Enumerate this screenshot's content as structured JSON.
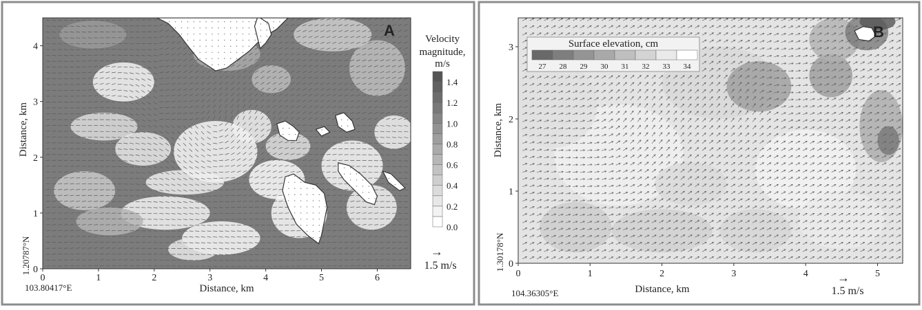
{
  "chart_data": [
    {
      "type": "heatmap",
      "panel_label": "A",
      "xlabel": "Distance, km",
      "ylabel": "Distance, km",
      "xlim": [
        0,
        6.6
      ],
      "ylim": [
        0,
        4.5
      ],
      "x_ticks": [
        0,
        1,
        2,
        3,
        4,
        5,
        6
      ],
      "y_ticks": [
        0,
        1,
        2,
        3,
        4
      ],
      "origin_lat": "1.20787°N",
      "origin_lon": "103.80417°E",
      "colorbar": {
        "title_lines": [
          "Velocity",
          "magnitude,",
          "m/s"
        ],
        "ticks": [
          "1.4",
          "1.2",
          "1.0",
          "0.8",
          "0.6",
          "0.4",
          "0.2",
          "0.0"
        ],
        "range": [
          0.0,
          1.5
        ]
      },
      "reference_vector": {
        "arrow": "→",
        "label": "1.5 m/s"
      },
      "field": "velocity magnitude with current vectors; islands shown as land (no data)",
      "colors": {
        "low": "#ffffff",
        "high": "#555555",
        "arrow": "#555555"
      }
    },
    {
      "type": "heatmap",
      "panel_label": "B",
      "xlabel": "Distance, km",
      "ylabel": "Distance, km",
      "xlim": [
        0,
        5.35
      ],
      "ylim": [
        0,
        3.4
      ],
      "x_ticks": [
        0,
        1,
        2,
        3,
        4,
        5
      ],
      "y_ticks": [
        0,
        1,
        2,
        3
      ],
      "origin_lat": "1.30178°N",
      "origin_lon": "104.36305°E",
      "colorbar": {
        "title": "Surface elevation, cm",
        "ticks": [
          "27",
          "28",
          "29",
          "30",
          "31",
          "32",
          "33",
          "34"
        ],
        "range": [
          27,
          34
        ]
      },
      "reference_vector": {
        "arrow": "→",
        "label": "1.5 m/s"
      },
      "field": "surface elevation with current vectors",
      "colors": {
        "low": "#666666",
        "high": "#ffffff",
        "arrow": "#555555"
      }
    }
  ]
}
